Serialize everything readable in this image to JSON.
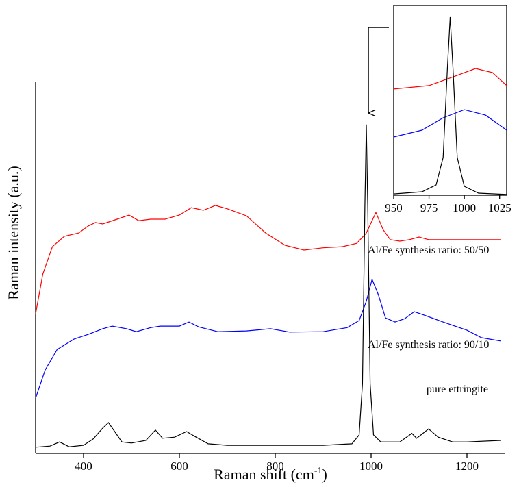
{
  "chart_data": [
    {
      "type": "line",
      "x_label": {
        "text": "Raman shift (cm",
        "superscript": "-1",
        "suffix": ")"
      },
      "y_label": "Raman intensity (a.u.)",
      "xlim": [
        300,
        1280
      ],
      "xticks": [
        400,
        600,
        800,
        1000,
        1200
      ],
      "ylim": [
        0,
        100
      ],
      "series": [
        {
          "name": "Al/Fe synthesis ratio: 50/50",
          "color": "#ff0000",
          "x": [
            300,
            315,
            335,
            360,
            390,
            410,
            425,
            440,
            470,
            495,
            515,
            540,
            570,
            600,
            625,
            650,
            675,
            700,
            740,
            780,
            820,
            860,
            900,
            940,
            970,
            990,
            1010,
            1025,
            1040,
            1060,
            1080,
            1100,
            1120,
            1200,
            1270
          ],
          "values": [
            37.6,
            48.3,
            55.7,
            58.5,
            59.4,
            61.3,
            62.2,
            61.8,
            63.1,
            64.2,
            62.7,
            63.1,
            63.1,
            64.2,
            66.2,
            65.5,
            66.8,
            65.9,
            64.0,
            59.4,
            56.1,
            54.8,
            55.4,
            55.7,
            56.6,
            59.4,
            64.9,
            60.3,
            57.6,
            57.2,
            57.6,
            58.3,
            57.6,
            57.6,
            57.6
          ]
        },
        {
          "name": "Al/Fe synthesis ratio: 90/10",
          "color": "#0000ff",
          "x": [
            300,
            320,
            345,
            380,
            410,
            440,
            460,
            490,
            510,
            540,
            560,
            600,
            620,
            640,
            680,
            740,
            790,
            830,
            900,
            950,
            975,
            990,
            1002,
            1015,
            1030,
            1050,
            1070,
            1090,
            1110,
            1150,
            1200,
            1230,
            1270
          ],
          "values": [
            14.9,
            22.5,
            28.0,
            30.8,
            32.1,
            33.6,
            34.3,
            33.6,
            32.8,
            33.9,
            34.3,
            34.3,
            35.4,
            34.1,
            32.8,
            33.0,
            33.6,
            32.7,
            32.8,
            33.9,
            35.8,
            41.0,
            46.9,
            42.8,
            36.5,
            35.4,
            36.3,
            38.2,
            37.3,
            35.4,
            33.2,
            31.2,
            30.3
          ]
        },
        {
          "name": "pure ettringite",
          "color": "#000000",
          "x": [
            300,
            330,
            350,
            370,
            400,
            420,
            440,
            452,
            465,
            480,
            500,
            530,
            550,
            565,
            590,
            615,
            635,
            660,
            700,
            800,
            900,
            960,
            975,
            982,
            987,
            990,
            993,
            998,
            1005,
            1020,
            1060,
            1085,
            1095,
            1120,
            1140,
            1170,
            1200,
            1270
          ],
          "values": [
            1.7,
            2.0,
            3.1,
            1.8,
            2.2,
            3.9,
            6.8,
            8.3,
            5.9,
            3.1,
            2.8,
            3.5,
            6.3,
            4.1,
            4.4,
            5.9,
            4.4,
            2.6,
            2.2,
            2.2,
            2.2,
            2.6,
            5.0,
            18.8,
            66.8,
            88.6,
            66.8,
            18.8,
            5.0,
            3.1,
            3.1,
            5.4,
            4.1,
            6.6,
            4.4,
            3.1,
            3.1,
            3.5
          ]
        }
      ]
    },
    {
      "type": "line",
      "xlim": [
        950,
        1030
      ],
      "xticks": [
        950,
        975,
        1000,
        1025
      ],
      "ylim": [
        0,
        100
      ],
      "series": [
        {
          "color": "#ff0000",
          "x": [
            950,
            975,
            995,
            1008,
            1020,
            1030
          ],
          "values": [
            56.0,
            57.8,
            63.2,
            66.8,
            64.6,
            57.8
          ]
        },
        {
          "color": "#0000ff",
          "x": [
            950,
            970,
            985,
            1000,
            1015,
            1030
          ],
          "values": [
            30.7,
            34.3,
            40.8,
            45.1,
            42.2,
            34.3
          ]
        },
        {
          "color": "#000000",
          "x": [
            950,
            970,
            980,
            985,
            988,
            990,
            992,
            995,
            1000,
            1010,
            1030
          ],
          "values": [
            0.7,
            1.8,
            5.4,
            19.9,
            66.8,
            93.9,
            66.8,
            19.9,
            4.7,
            1.1,
            0.4
          ]
        }
      ]
    }
  ]
}
